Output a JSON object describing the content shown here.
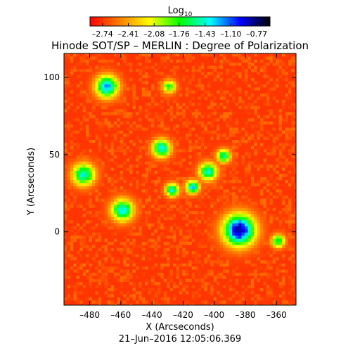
{
  "chart_data": {
    "type": "heatmap",
    "title": "Hinode SOT/SP – MERLIN : Degree of Polarization",
    "xlabel": "X (Arcseconds)",
    "ylabel": "Y (Arcseconds)",
    "timestamp": "21–Jun–2016 12:05:06.369",
    "xlim": [
      -496.5,
      -347.5
    ],
    "ylim": [
      -47.5,
      115.5
    ],
    "x_ticks": [
      -480,
      -460,
      -440,
      -420,
      -400,
      -380,
      -360
    ],
    "x_tick_labels": [
      "–480",
      "–460",
      "–440",
      "–420",
      "–400",
      "–380",
      "–360"
    ],
    "y_ticks": [
      0,
      50,
      100
    ],
    "y_tick_labels": [
      "0",
      "50",
      "100"
    ],
    "colorbar": {
      "label": "Log",
      "label_subscript": "10",
      "min": -2.9,
      "max": -0.6,
      "tick_values": [
        -2.74,
        -2.41,
        -2.08,
        -1.76,
        -1.43,
        -1.1,
        -0.77
      ],
      "tick_labels": [
        "–2.74",
        "–2.41",
        "–2.08",
        "–1.76",
        "–1.43",
        "–1.10",
        "–0.77"
      ],
      "colors": [
        "#ff0000",
        "#ff8000",
        "#ffff00",
        "#00ff00",
        "#00ffff",
        "#0000ff",
        "#000000"
      ]
    },
    "background_level": -2.74,
    "features": [
      {
        "x": -385,
        "y": 2,
        "radius": 7,
        "peak": -0.77
      },
      {
        "x": -470,
        "y": 95,
        "radius": 5,
        "peak": -1.2
      },
      {
        "x": -435,
        "y": 55,
        "radius": 4,
        "peak": -1.3
      },
      {
        "x": -485,
        "y": 38,
        "radius": 5,
        "peak": -1.4
      },
      {
        "x": -460,
        "y": 15,
        "radius": 5,
        "peak": -1.4
      },
      {
        "x": -428,
        "y": 28,
        "radius": 3,
        "peak": -1.4
      },
      {
        "x": -415,
        "y": 30,
        "radius": 3,
        "peak": -1.3
      },
      {
        "x": -405,
        "y": 40,
        "radius": 4,
        "peak": -1.4
      },
      {
        "x": -395,
        "y": 50,
        "radius": 3,
        "peak": -1.5
      },
      {
        "x": -360,
        "y": -5,
        "radius": 3,
        "peak": -1.6
      },
      {
        "x": -430,
        "y": 95,
        "radius": 3,
        "peak": -1.7
      }
    ]
  }
}
